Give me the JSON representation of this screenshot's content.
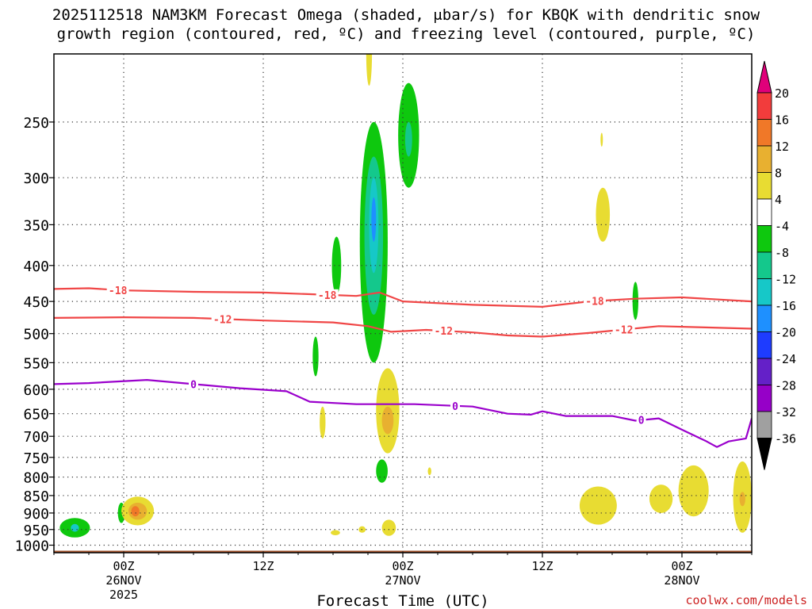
{
  "chart_data": {
    "type": "time-height cross-section",
    "title_line1": "2025112518 NAM3KM Forecast Omega (shaded, μbar/s) for KBQK with dendritic snow",
    "title_line2": "growth region (contoured, red, ºC) and freezing level (contoured, purple, ºC)",
    "xlabel": "Forecast Time (UTC)",
    "watermark": "coolwx.com/models",
    "y_axis": {
      "units": "hPa",
      "range": [
        1025,
        200
      ],
      "ticks": [
        250,
        300,
        350,
        400,
        450,
        500,
        550,
        600,
        650,
        700,
        750,
        800,
        850,
        900,
        950,
        1000
      ]
    },
    "x_axis": {
      "range_hours": [
        -6,
        54
      ],
      "ticks": [
        {
          "hour": 0,
          "labels": [
            "00Z",
            "26NOV",
            "2025"
          ]
        },
        {
          "hour": 12,
          "labels": [
            "12Z"
          ]
        },
        {
          "hour": 24,
          "labels": [
            "00Z",
            "27NOV"
          ]
        },
        {
          "hour": 36,
          "labels": [
            "12Z"
          ]
        },
        {
          "hour": 48,
          "labels": [
            "00Z",
            "28NOV"
          ]
        }
      ]
    },
    "colorbar": {
      "labels": [
        "20",
        "16",
        "12",
        "8",
        "4",
        "-4",
        "-8",
        "-12",
        "-16",
        "-20",
        "-24",
        "-28",
        "-32",
        "-36"
      ],
      "colors": [
        "#e0007a",
        "#f23c3c",
        "#f07828",
        "#e8b030",
        "#e8dc32",
        "#ffffff",
        "#0ec80e",
        "#14c88c",
        "#16c8c8",
        "#1e90ff",
        "#1e3cff",
        "#6420c8",
        "#9600c8",
        "#a0a0a0",
        "#000000"
      ]
    },
    "series": [
      {
        "name": "-18 C isotherm",
        "color": "#f04646",
        "label": "-18",
        "label_hours": [
          -0.5,
          17.5,
          40.5
        ],
        "points": [
          [
            -6,
            432
          ],
          [
            -3,
            431
          ],
          [
            0,
            434
          ],
          [
            6,
            436
          ],
          [
            12,
            437
          ],
          [
            17,
            440
          ],
          [
            20,
            442
          ],
          [
            22,
            437
          ],
          [
            24,
            450
          ],
          [
            30,
            455
          ],
          [
            36,
            458
          ],
          [
            40,
            450
          ],
          [
            44,
            446
          ],
          [
            48,
            444
          ],
          [
            54,
            450
          ]
        ]
      },
      {
        "name": "-12 C isotherm",
        "color": "#f04646",
        "label": "-12",
        "label_hours": [
          8.5,
          27.5,
          43
        ],
        "points": [
          [
            -6,
            475
          ],
          [
            0,
            474
          ],
          [
            6,
            475
          ],
          [
            12,
            479
          ],
          [
            18,
            482
          ],
          [
            21,
            488
          ],
          [
            23,
            497
          ],
          [
            26,
            494
          ],
          [
            30,
            498
          ],
          [
            33,
            503
          ],
          [
            36,
            505
          ],
          [
            40,
            499
          ],
          [
            46,
            488
          ],
          [
            50,
            490
          ],
          [
            54,
            492
          ]
        ]
      },
      {
        "name": "0 C freezing level",
        "color": "#9a00cc",
        "label": "0",
        "label_hours": [
          6,
          28.5,
          44.5
        ],
        "points": [
          [
            -6,
            590
          ],
          [
            -3,
            588
          ],
          [
            2,
            582
          ],
          [
            6,
            590
          ],
          [
            10,
            598
          ],
          [
            14,
            604
          ],
          [
            16,
            625
          ],
          [
            20,
            630
          ],
          [
            25,
            630
          ],
          [
            30,
            635
          ],
          [
            33,
            650
          ],
          [
            35,
            652
          ],
          [
            36,
            645
          ],
          [
            38,
            655
          ],
          [
            42,
            655
          ],
          [
            44,
            665
          ],
          [
            46,
            660
          ],
          [
            48,
            685
          ],
          [
            50,
            710
          ],
          [
            51,
            725
          ],
          [
            52,
            712
          ],
          [
            53.5,
            705
          ],
          [
            54,
            660
          ]
        ]
      }
    ],
    "omega_regions": [
      {
        "value": -8,
        "center": [
          -4.2,
          945
        ],
        "radius_h": 1.3,
        "radius_p": 30
      },
      {
        "value": -16,
        "center": [
          -4.2,
          945
        ],
        "radius_h": 0.35,
        "radius_p": 12
      },
      {
        "value": -8,
        "center": [
          -0.2,
          900
        ],
        "radius_h": 0.3,
        "radius_p": 30
      },
      {
        "value": 4,
        "center": [
          1.2,
          895
        ],
        "radius_h": 1.4,
        "radius_p": 42
      },
      {
        "value": 8,
        "center": [
          1.2,
          895
        ],
        "radius_h": 0.8,
        "radius_p": 25
      },
      {
        "value": 12,
        "center": [
          1.0,
          895
        ],
        "radius_h": 0.35,
        "radius_p": 15
      },
      {
        "value": 4,
        "center": [
          21.1,
          200
        ],
        "radius_h": 0.25,
        "radius_p": 22
      },
      {
        "value": -8,
        "center": [
          21.5,
          400
        ],
        "radius_h": 1.2,
        "radius_p": 150
      },
      {
        "value": -12,
        "center": [
          21.5,
          375
        ],
        "radius_h": 0.8,
        "radius_p": 95
      },
      {
        "value": -16,
        "center": [
          21.5,
          355
        ],
        "radius_h": 0.4,
        "radius_p": 55
      },
      {
        "value": -20,
        "center": [
          21.5,
          345
        ],
        "radius_h": 0.2,
        "radius_p": 25
      },
      {
        "value": -8,
        "center": [
          18.3,
          402
        ],
        "radius_h": 0.4,
        "radius_p": 38
      },
      {
        "value": -8,
        "center": [
          16.5,
          540
        ],
        "radius_h": 0.25,
        "radius_p": 35
      },
      {
        "value": -8,
        "center": [
          24.5,
          265
        ],
        "radius_h": 0.9,
        "radius_p": 45
      },
      {
        "value": -12,
        "center": [
          24.5,
          265
        ],
        "radius_h": 0.3,
        "radius_p": 15
      },
      {
        "value": 4,
        "center": [
          22.7,
          650
        ],
        "radius_h": 1.0,
        "radius_p": 90
      },
      {
        "value": 8,
        "center": [
          22.7,
          665
        ],
        "radius_h": 0.5,
        "radius_p": 30
      },
      {
        "value": 4,
        "center": [
          17.1,
          670
        ],
        "radius_h": 0.25,
        "radius_p": 35
      },
      {
        "value": -8,
        "center": [
          22.2,
          785
        ],
        "radius_h": 0.5,
        "radius_p": 30
      },
      {
        "value": 4,
        "center": [
          26.3,
          785
        ],
        "radius_h": 0.15,
        "radius_p": 10
      },
      {
        "value": 4,
        "center": [
          22.8,
          945
        ],
        "radius_h": 0.6,
        "radius_p": 25
      },
      {
        "value": 4,
        "center": [
          20.5,
          950
        ],
        "radius_h": 0.3,
        "radius_p": 10
      },
      {
        "value": 4,
        "center": [
          18.2,
          960
        ],
        "radius_h": 0.4,
        "radius_p": 8
      },
      {
        "value": 4,
        "center": [
          40.8,
          880
        ],
        "radius_h": 1.6,
        "radius_p": 55
      },
      {
        "value": 4,
        "center": [
          41.2,
          340
        ],
        "radius_h": 0.6,
        "radius_p": 30
      },
      {
        "value": 4,
        "center": [
          41.1,
          265
        ],
        "radius_h": 0.1,
        "radius_p": 6
      },
      {
        "value": -8,
        "center": [
          44.0,
          450
        ],
        "radius_h": 0.25,
        "radius_p": 28
      },
      {
        "value": 4,
        "center": [
          46.2,
          860
        ],
        "radius_h": 1.0,
        "radius_p": 40
      },
      {
        "value": 4,
        "center": [
          49.0,
          840
        ],
        "radius_h": 1.3,
        "radius_p": 70
      },
      {
        "value": 4,
        "center": [
          53.2,
          860
        ],
        "radius_h": 0.8,
        "radius_p": 100
      },
      {
        "value": 8,
        "center": [
          53.2,
          860
        ],
        "radius_h": 0.25,
        "radius_p": 20
      }
    ],
    "terrain_fill_color": "#a0522d",
    "grid": "dotted"
  }
}
